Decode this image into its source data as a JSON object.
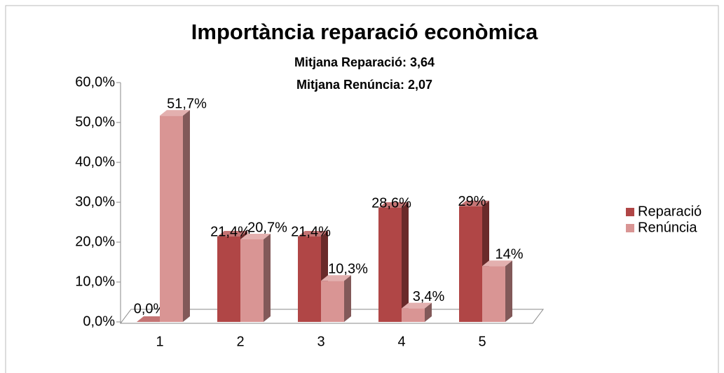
{
  "chart_data": {
    "type": "bar3d",
    "title": "Importància reparació econòmica",
    "subtitles": [
      "Mitjana Reparació: 3,64",
      "Mitjana Renúncia: 2,07"
    ],
    "categories": [
      "1",
      "2",
      "3",
      "4",
      "5"
    ],
    "series": [
      {
        "name": "Reparació",
        "color": "#b04646",
        "values": [
          0,
          21.4,
          21.4,
          28.6,
          29
        ],
        "value_labels": [
          "0,0%",
          "21,4%",
          "21,4%",
          "28,6%",
          "29%"
        ]
      },
      {
        "name": "Renúncia",
        "color": "#d99594",
        "values": [
          51.7,
          20.7,
          10.3,
          3.4,
          14
        ],
        "value_labels": [
          "51,7%",
          "20,7%",
          "10,3%",
          "3,4%",
          "14%"
        ]
      }
    ],
    "ylim": [
      0,
      60
    ],
    "yticks": [
      {
        "value": 0,
        "label": "0,0%"
      },
      {
        "value": 10,
        "label": "10,0%"
      },
      {
        "value": 20,
        "label": "20,0%"
      },
      {
        "value": 30,
        "label": "30,0%"
      },
      {
        "value": 40,
        "label": "40,0%"
      },
      {
        "value": 50,
        "label": "50,0%"
      },
      {
        "value": 60,
        "label": "60,0%"
      }
    ],
    "legend": "right"
  }
}
